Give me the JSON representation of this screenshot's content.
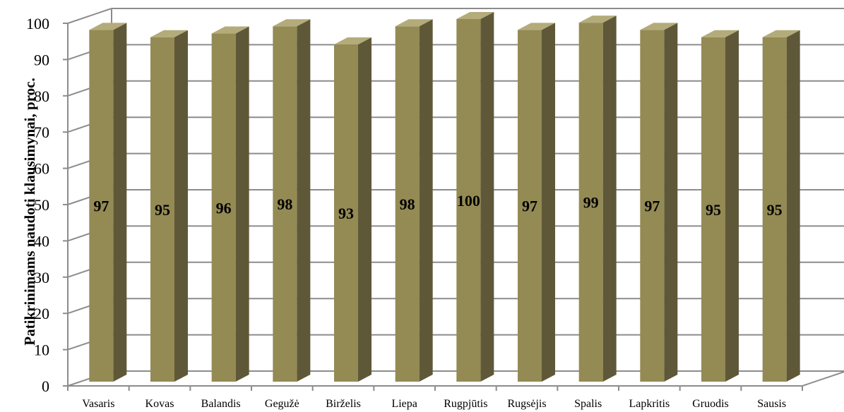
{
  "chart_data": {
    "type": "bar",
    "style": "3d-column",
    "categories": [
      "Vasaris",
      "Kovas",
      "Balandis",
      "Gegužė",
      "Birželis",
      "Liepa",
      "Rugpjūtis",
      "Rugsėjis",
      "Spalis",
      "Lapkritis",
      "Gruodis",
      "Sausis"
    ],
    "values": [
      97,
      95,
      96,
      98,
      93,
      98,
      100,
      97,
      99,
      97,
      95,
      95
    ],
    "data_labels": [
      "97",
      "95",
      "96",
      "98",
      "93",
      "98",
      "100",
      "97",
      "99",
      "97",
      "95",
      "95"
    ],
    "title": "",
    "xlabel": "",
    "ylabel": "Patikrinimams naudoti klausimynai, proc.",
    "ylim": [
      0,
      100
    ],
    "yticks": [
      "0",
      "10",
      "20",
      "30",
      "40",
      "50",
      "60",
      "70",
      "80",
      "90",
      "100"
    ],
    "grid": true,
    "legend": "none",
    "colors": {
      "bar_front": "#948a54",
      "bar_side": "#5f5838",
      "bar_top": "#b3ab7a",
      "gridline": "#8c8c8c",
      "background": "#ffffff"
    }
  }
}
